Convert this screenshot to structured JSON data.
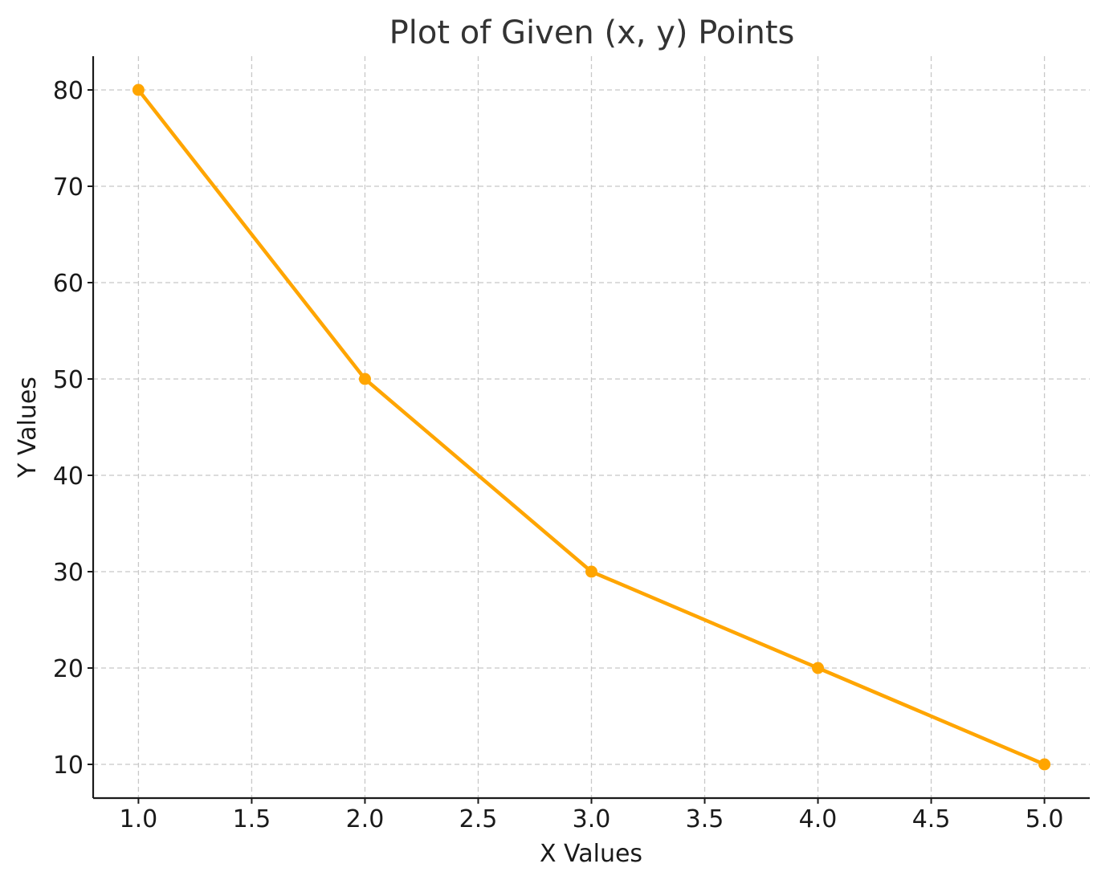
{
  "chart_data": {
    "type": "line",
    "title": "Plot of Given (x, y) Points",
    "xlabel": "X Values",
    "ylabel": "Y Values",
    "xlim": [
      0.8,
      5.2
    ],
    "ylim": [
      6.5,
      83.5
    ],
    "xticks": [
      1.0,
      1.5,
      2.0,
      2.5,
      3.0,
      3.5,
      4.0,
      4.5,
      5.0
    ],
    "xtick_labels": [
      "1.0",
      "1.5",
      "2.0",
      "2.5",
      "3.0",
      "3.5",
      "4.0",
      "4.5",
      "5.0"
    ],
    "yticks": [
      10,
      20,
      30,
      40,
      50,
      60,
      70,
      80
    ],
    "ytick_labels": [
      "10",
      "20",
      "30",
      "40",
      "50",
      "60",
      "70",
      "80"
    ],
    "grid": true,
    "series": [
      {
        "x": [
          1,
          2,
          3,
          4,
          5
        ],
        "y": [
          80,
          50,
          30,
          20,
          10
        ],
        "color": "#FFA500",
        "marker": "circle"
      }
    ]
  }
}
